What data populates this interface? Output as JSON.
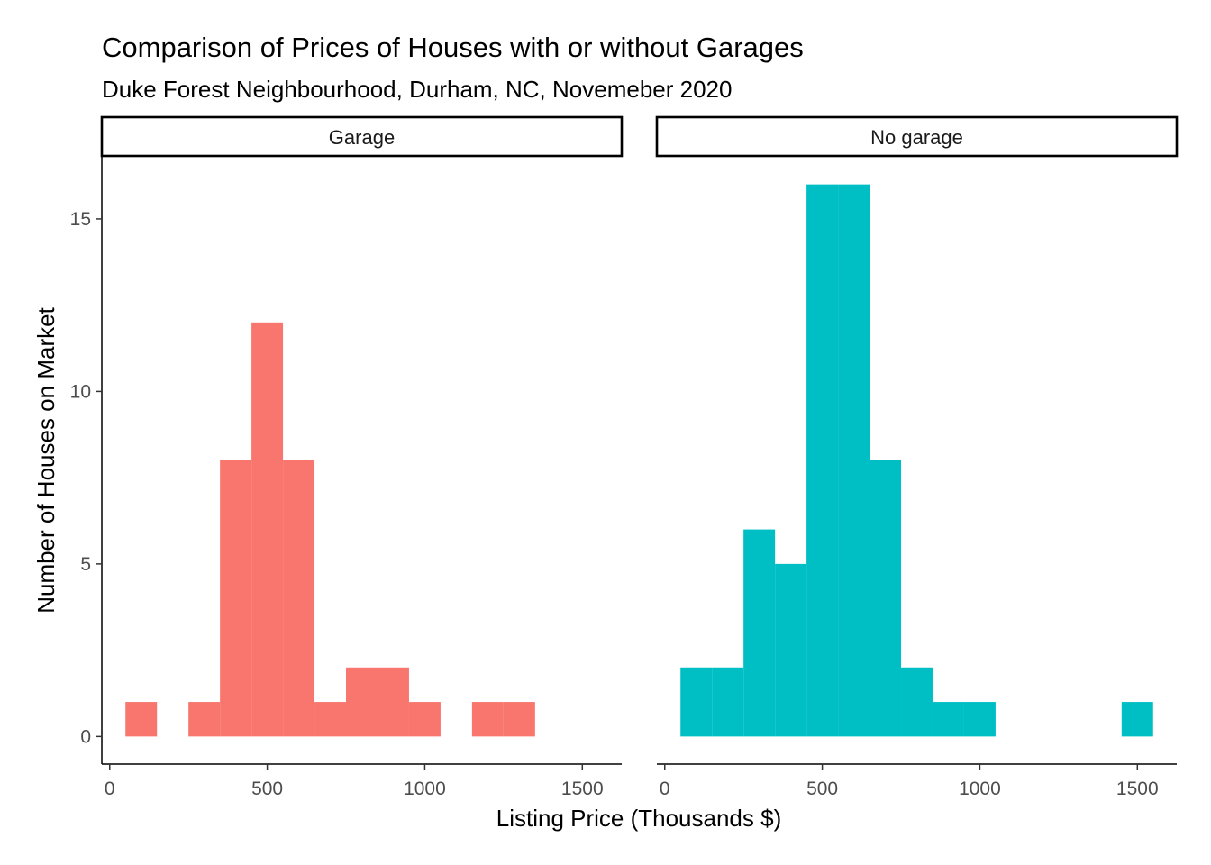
{
  "chart_data": {
    "type": "bar",
    "title": "Comparison of Prices of Houses with or without Garages",
    "subtitle": "Duke Forest Neighbourhood, Durham, NC, Novemeber 2020",
    "xlabel": "Listing Price (Thousands $)",
    "ylabel": "Number of Houses on Market",
    "xlim": [
      -25,
      1625
    ],
    "ylim": [
      -0.8,
      16.8
    ],
    "x_ticks": [
      0,
      500,
      1000,
      1500
    ],
    "y_ticks": [
      0,
      5,
      10,
      15
    ],
    "bin_width": 100,
    "grid": false,
    "legend": "none",
    "panels": [
      {
        "name": "Garage",
        "color": "#F8766D",
        "bins": [
          {
            "x": 100,
            "count": 1
          },
          {
            "x": 300,
            "count": 1
          },
          {
            "x": 400,
            "count": 8
          },
          {
            "x": 500,
            "count": 12
          },
          {
            "x": 600,
            "count": 8
          },
          {
            "x": 700,
            "count": 1
          },
          {
            "x": 800,
            "count": 2
          },
          {
            "x": 900,
            "count": 2
          },
          {
            "x": 1000,
            "count": 1
          },
          {
            "x": 1200,
            "count": 1
          },
          {
            "x": 1300,
            "count": 1
          }
        ]
      },
      {
        "name": "No garage",
        "color": "#00BFC4",
        "bins": [
          {
            "x": 100,
            "count": 2
          },
          {
            "x": 200,
            "count": 2
          },
          {
            "x": 300,
            "count": 6
          },
          {
            "x": 400,
            "count": 5
          },
          {
            "x": 500,
            "count": 16
          },
          {
            "x": 600,
            "count": 16
          },
          {
            "x": 700,
            "count": 8
          },
          {
            "x": 800,
            "count": 2
          },
          {
            "x": 900,
            "count": 1
          },
          {
            "x": 1000,
            "count": 1
          },
          {
            "x": 1500,
            "count": 1
          }
        ]
      }
    ]
  }
}
